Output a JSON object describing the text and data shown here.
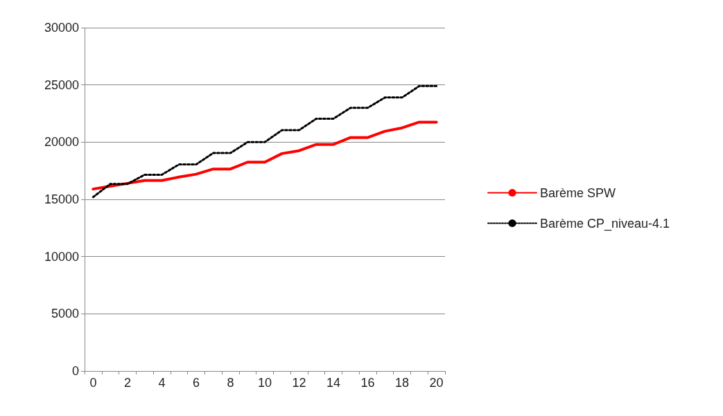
{
  "chart_data": {
    "type": "line",
    "categories": [
      "0",
      null,
      "2",
      null,
      "4",
      null,
      "6",
      null,
      "8",
      null,
      "10",
      null,
      "12",
      null,
      "14",
      null,
      "16",
      null,
      "18",
      null,
      "20"
    ],
    "series": [
      {
        "name": "Barème SPW",
        "color": "#ff0000",
        "line_style": "solid",
        "values": [
          15900,
          16150,
          16400,
          16650,
          16650,
          16950,
          17200,
          17650,
          17650,
          18250,
          18250,
          19000,
          19250,
          19800,
          19800,
          20400,
          20400,
          20950,
          21250,
          21750,
          21750
        ]
      },
      {
        "name": "Barème CP_niveau-4.1",
        "color": "#000000",
        "line_style": "dotted",
        "values": [
          15200,
          16350,
          16350,
          17150,
          17150,
          18050,
          18050,
          19050,
          19050,
          20000,
          20000,
          21050,
          21050,
          22050,
          22050,
          23000,
          23000,
          23900,
          23900,
          24900,
          24900
        ]
      }
    ],
    "ylim": [
      0,
      30000
    ],
    "yticks": [
      0,
      5000,
      10000,
      15000,
      20000,
      25000,
      30000
    ],
    "grid": "y",
    "legend": "right",
    "marker": "none"
  }
}
